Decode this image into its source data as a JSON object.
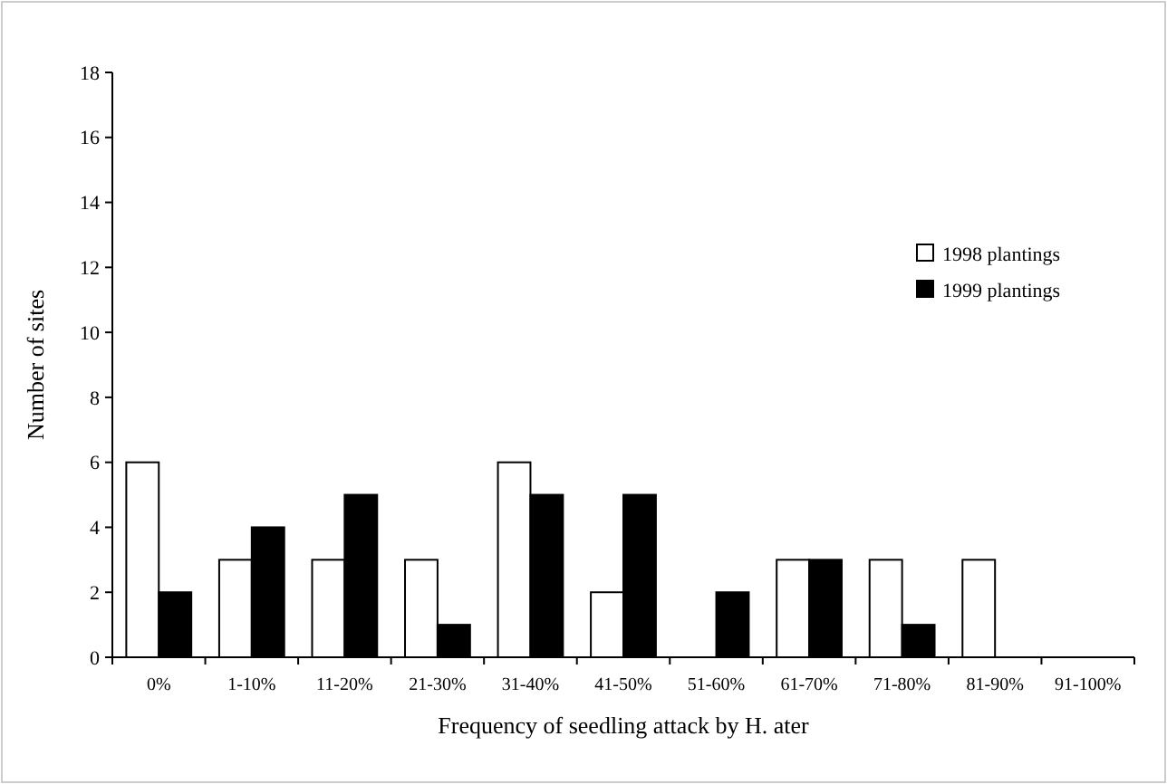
{
  "chart_data": {
    "type": "bar",
    "xlabel": "Frequency of seedling attack by H. ater",
    "ylabel": "Number of sites",
    "categories": [
      "0%",
      "1-10%",
      "11-20%",
      "21-30%",
      "31-40%",
      "41-50%",
      "51-60%",
      "61-70%",
      "71-80%",
      "81-90%",
      "91-100%"
    ],
    "series": [
      {
        "name": "1998 plantings",
        "color": "#ffffff",
        "values": [
          6,
          3,
          3,
          3,
          6,
          2,
          0,
          3,
          3,
          3,
          0
        ]
      },
      {
        "name": "1999 plantings",
        "color": "#000000",
        "values": [
          2,
          4,
          5,
          1,
          5,
          5,
          2,
          3,
          1,
          0,
          0
        ]
      }
    ],
    "ylim": [
      0,
      18
    ],
    "yticks": [
      0,
      2,
      4,
      6,
      8,
      10,
      12,
      14,
      16,
      18
    ],
    "grid": false,
    "legend": "top right"
  }
}
